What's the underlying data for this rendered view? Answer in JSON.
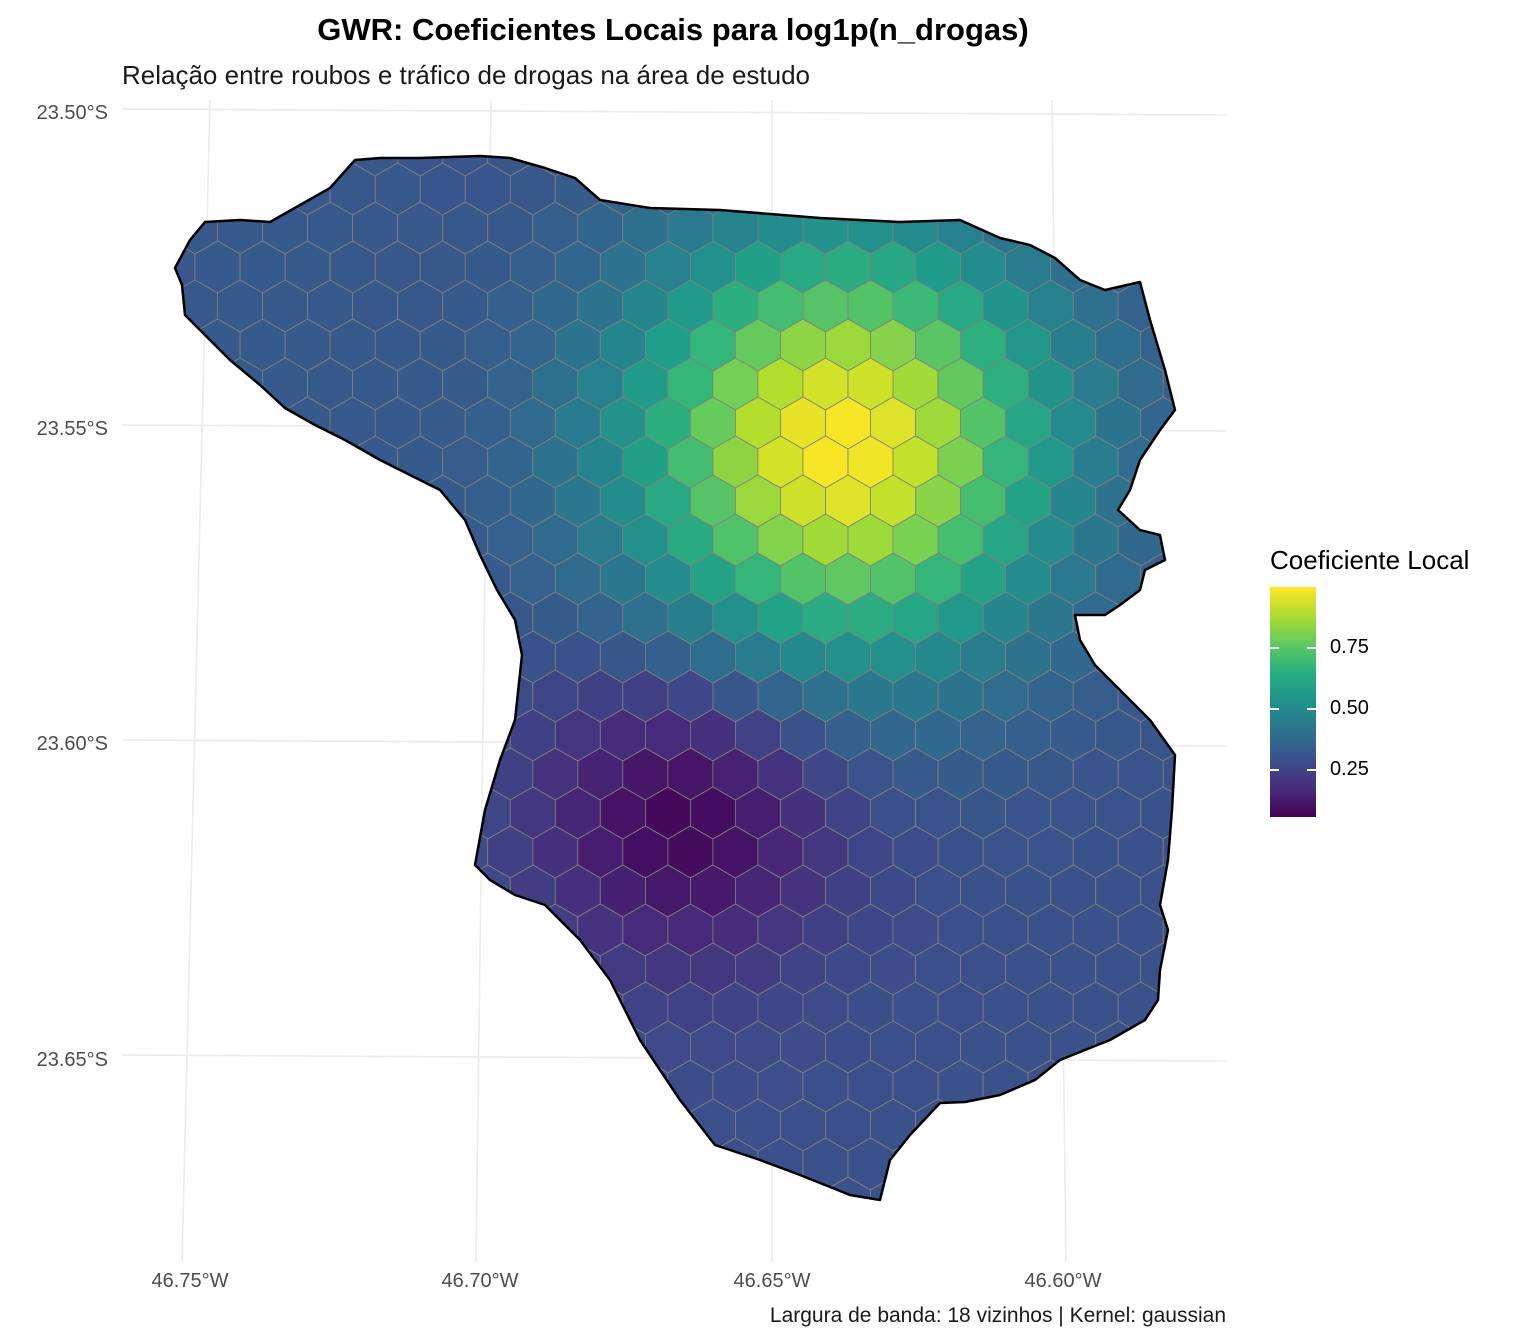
{
  "title": "GWR: Coeficientes Locais para log1p(n_drogas)",
  "subtitle": "Relação entre roubos e tráfico de drogas na área de estudo",
  "caption": "Largura de banda: 18 vizinhos | Kernel: gaussian",
  "axes": {
    "y_ticks": [
      "23.50°S",
      "23.55°S",
      "23.60°S",
      "23.65°S"
    ],
    "x_ticks": [
      "46.75°W",
      "46.70°W",
      "46.65°W",
      "46.60°W"
    ]
  },
  "legend": {
    "title": "Coeficiente Local",
    "ticks": [
      "0.25",
      "0.50",
      "0.75"
    ],
    "colormap": "viridis",
    "range": [
      0.03,
      0.99
    ]
  },
  "colors": {
    "viridis": [
      "#440154",
      "#482878",
      "#3e4989",
      "#31688e",
      "#26828e",
      "#1f9e89",
      "#35b779",
      "#6ece58",
      "#b5de2b",
      "#fde725"
    ],
    "hex_border": "#808080",
    "boundary": "#000000"
  },
  "chart_data": {
    "type": "heatmap",
    "description_units": "longitude/latitude (degrees)",
    "xlim": [
      -46.76,
      -46.57
    ],
    "ylim": [
      -23.68,
      -23.5
    ],
    "hotspots": [
      {
        "lon": -46.638,
        "lat": -23.553,
        "coef": 0.99
      },
      {
        "lon": -46.665,
        "lat": -23.611,
        "coef": 0.03
      }
    ]
  }
}
